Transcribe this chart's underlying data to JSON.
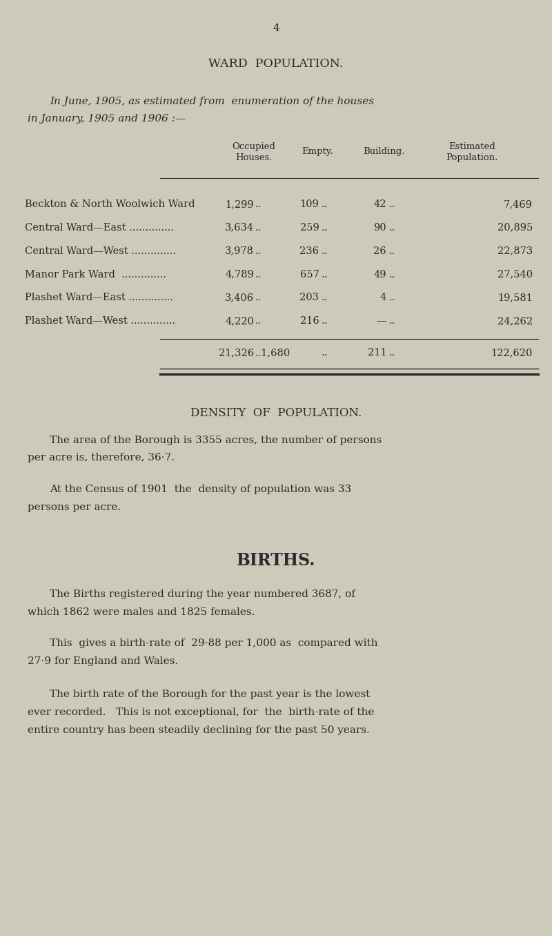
{
  "bg_color": "#cdc9bb",
  "text_color": "#2a2a2a",
  "page_number": "4",
  "section1_title": "WARD  POPULATION.",
  "intro_text_line1": "In June, 1905, as estimated from  enumeration of the houses",
  "intro_text_line2": "in January, 1905 and 1906 :—",
  "col_header_occ": "Occupied\nHouses.",
  "col_header_empty": "Empty.",
  "col_header_building": "Building.",
  "col_header_est": "Estimated\nPopulation.",
  "ward_rows": [
    [
      "Beckton & North Woolwich Ward",
      "1,299",
      "109",
      "42",
      "7,469"
    ],
    [
      "Central Ward—East ..............",
      "3,634",
      "259",
      "90",
      "20,895"
    ],
    [
      "Central Ward—West ..............",
      "3,978",
      "236",
      "26",
      "22,873"
    ],
    [
      "Manor Park Ward  ..............",
      "4,789",
      "657",
      "49",
      "27,540"
    ],
    [
      "Plashet Ward—East ..............",
      "3,406",
      "203",
      "4",
      "19,581"
    ],
    [
      "Plashet Ward—West ..............",
      "4,220",
      "216",
      "—",
      "24,262"
    ]
  ],
  "section2_title": "DENSITY  OF  POPULATION.",
  "density_para1_line1": "The area of the Borough is 3355 acres, the number of persons",
  "density_para1_line2": "per acre is, therefore, 36·7.",
  "density_para2_line1": "At the Census of 1901  the  density of population was 33",
  "density_para2_line2": "persons per acre.",
  "section3_title": "BIRTHS.",
  "births_para1_line1": "The Births registered during the year numbered 3687, of",
  "births_para1_line2": "which 1862 were males and 1825 females.",
  "births_para2_line1": "This  gives a birth-rate of  29·88 per 1,000 as  compared with",
  "births_para2_line2": "27·9 for England and Wales.",
  "births_para3_line1": "The birth rate of the Borough for the past year is the lowest",
  "births_para3_line2": "ever recorded.   This is not exceptional, for  the  birth-rate of the",
  "births_para3_line3": "entire country has been steadily declining for the past 50 years."
}
